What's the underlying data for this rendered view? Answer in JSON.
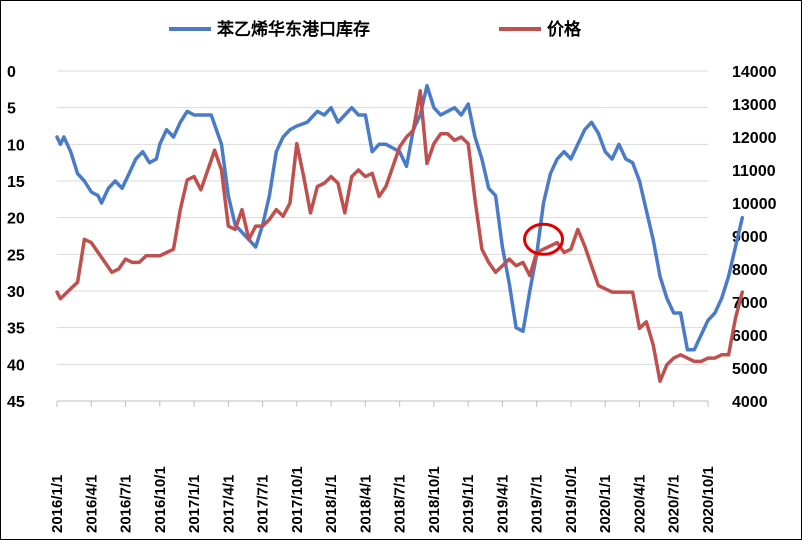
{
  "chart_data": {
    "type": "line",
    "title": "",
    "legend_position": "top",
    "grid": "horizontal",
    "left_axis": {
      "ylim": [
        0,
        45
      ],
      "inverted": true,
      "ticks": [
        "0",
        "5",
        "10",
        "15",
        "20",
        "25",
        "30",
        "35",
        "40",
        "45"
      ]
    },
    "right_axis": {
      "ylim": [
        4000,
        14000
      ],
      "ticks": [
        "14000",
        "13000",
        "12000",
        "11000",
        "10000",
        "9000",
        "8000",
        "7000",
        "6000",
        "5000",
        "4000"
      ]
    },
    "x_ticks": [
      "2016/1/1",
      "2016/4/1",
      "2016/7/1",
      "2016/10/1",
      "2017/1/1",
      "2017/4/1",
      "2017/7/1",
      "2017/10/1",
      "2018/1/1",
      "2018/4/1",
      "2018/7/1",
      "2018/10/1",
      "2019/1/1",
      "2019/4/1",
      "2019/7/1",
      "2019/10/1",
      "2020/1/1",
      "2020/4/1",
      "2020/7/1",
      "2020/10/1"
    ],
    "series": [
      {
        "name": "苯乙烯华东港口库存",
        "axis": "left",
        "color": "#4a7bc8",
        "points": [
          [
            0.0,
            9
          ],
          [
            0.1,
            10
          ],
          [
            0.2,
            9
          ],
          [
            0.4,
            11
          ],
          [
            0.6,
            14
          ],
          [
            0.8,
            15
          ],
          [
            1.0,
            16.5
          ],
          [
            1.2,
            17
          ],
          [
            1.3,
            18
          ],
          [
            1.5,
            16
          ],
          [
            1.7,
            15
          ],
          [
            1.9,
            16
          ],
          [
            2.1,
            14
          ],
          [
            2.3,
            12
          ],
          [
            2.5,
            11
          ],
          [
            2.7,
            12.5
          ],
          [
            2.9,
            12
          ],
          [
            3.0,
            10
          ],
          [
            3.2,
            8
          ],
          [
            3.4,
            9
          ],
          [
            3.6,
            7
          ],
          [
            3.8,
            5.5
          ],
          [
            4.0,
            6
          ],
          [
            4.2,
            6
          ],
          [
            4.5,
            6
          ],
          [
            4.8,
            10
          ],
          [
            5.0,
            17
          ],
          [
            5.2,
            21
          ],
          [
            5.4,
            22
          ],
          [
            5.6,
            23
          ],
          [
            5.8,
            24
          ],
          [
            6.0,
            21
          ],
          [
            6.2,
            17
          ],
          [
            6.4,
            11
          ],
          [
            6.6,
            9
          ],
          [
            6.8,
            8
          ],
          [
            7.0,
            7.5
          ],
          [
            7.3,
            7
          ],
          [
            7.6,
            5.5
          ],
          [
            7.8,
            6
          ],
          [
            8.0,
            5
          ],
          [
            8.2,
            7
          ],
          [
            8.4,
            6
          ],
          [
            8.6,
            5
          ],
          [
            8.8,
            6
          ],
          [
            9.0,
            6
          ],
          [
            9.2,
            11
          ],
          [
            9.4,
            10
          ],
          [
            9.6,
            10
          ],
          [
            9.8,
            10.5
          ],
          [
            10.0,
            11
          ],
          [
            10.2,
            13
          ],
          [
            10.4,
            8
          ],
          [
            10.6,
            6
          ],
          [
            10.8,
            2
          ],
          [
            11.0,
            5
          ],
          [
            11.2,
            6
          ],
          [
            11.4,
            5.5
          ],
          [
            11.6,
            5
          ],
          [
            11.8,
            6
          ],
          [
            12.0,
            4.5
          ],
          [
            12.2,
            9
          ],
          [
            12.4,
            12
          ],
          [
            12.6,
            16
          ],
          [
            12.8,
            17
          ],
          [
            13.0,
            24
          ],
          [
            13.2,
            29
          ],
          [
            13.4,
            35
          ],
          [
            13.6,
            35.5
          ],
          [
            13.8,
            30
          ],
          [
            14.0,
            25
          ],
          [
            14.2,
            18
          ],
          [
            14.4,
            14
          ],
          [
            14.6,
            12
          ],
          [
            14.8,
            11
          ],
          [
            15.0,
            12
          ],
          [
            15.2,
            10
          ],
          [
            15.4,
            8
          ],
          [
            15.6,
            7
          ],
          [
            15.8,
            8.5
          ],
          [
            16.0,
            11
          ],
          [
            16.2,
            12
          ],
          [
            16.4,
            10
          ],
          [
            16.6,
            12
          ],
          [
            16.8,
            12.5
          ],
          [
            17.0,
            15
          ],
          [
            17.2,
            19
          ],
          [
            17.4,
            23
          ],
          [
            17.6,
            28
          ],
          [
            17.8,
            31
          ],
          [
            18.0,
            33
          ],
          [
            18.2,
            33
          ],
          [
            18.4,
            38
          ],
          [
            18.6,
            38
          ],
          [
            18.8,
            36
          ],
          [
            19.0,
            34
          ],
          [
            19.2,
            33
          ],
          [
            19.4,
            31
          ],
          [
            19.6,
            28
          ],
          [
            19.8,
            24
          ],
          [
            20.0,
            20
          ]
        ]
      },
      {
        "name": "价格",
        "axis": "right",
        "color": "#c0504d",
        "points": [
          [
            0.0,
            7300
          ],
          [
            0.1,
            7100
          ],
          [
            0.2,
            7200
          ],
          [
            0.4,
            7400
          ],
          [
            0.6,
            7600
          ],
          [
            0.8,
            8900
          ],
          [
            1.0,
            8800
          ],
          [
            1.2,
            8500
          ],
          [
            1.4,
            8200
          ],
          [
            1.6,
            7900
          ],
          [
            1.8,
            8000
          ],
          [
            2.0,
            8300
          ],
          [
            2.2,
            8200
          ],
          [
            2.4,
            8200
          ],
          [
            2.6,
            8400
          ],
          [
            2.8,
            8400
          ],
          [
            3.0,
            8400
          ],
          [
            3.2,
            8500
          ],
          [
            3.4,
            8600
          ],
          [
            3.6,
            9800
          ],
          [
            3.8,
            10700
          ],
          [
            4.0,
            10800
          ],
          [
            4.2,
            10400
          ],
          [
            4.4,
            11000
          ],
          [
            4.6,
            11600
          ],
          [
            4.8,
            11000
          ],
          [
            5.0,
            9300
          ],
          [
            5.2,
            9200
          ],
          [
            5.4,
            9800
          ],
          [
            5.6,
            8900
          ],
          [
            5.8,
            9300
          ],
          [
            6.0,
            9300
          ],
          [
            6.2,
            9500
          ],
          [
            6.4,
            9800
          ],
          [
            6.6,
            9600
          ],
          [
            6.8,
            10000
          ],
          [
            7.0,
            11800
          ],
          [
            7.2,
            10800
          ],
          [
            7.4,
            9700
          ],
          [
            7.6,
            10500
          ],
          [
            7.8,
            10600
          ],
          [
            8.0,
            10800
          ],
          [
            8.2,
            10600
          ],
          [
            8.4,
            9700
          ],
          [
            8.6,
            10800
          ],
          [
            8.8,
            11000
          ],
          [
            9.0,
            10800
          ],
          [
            9.2,
            10900
          ],
          [
            9.4,
            10200
          ],
          [
            9.6,
            10500
          ],
          [
            9.8,
            11100
          ],
          [
            10.0,
            11700
          ],
          [
            10.2,
            12000
          ],
          [
            10.4,
            12200
          ],
          [
            10.6,
            13400
          ],
          [
            10.8,
            11200
          ],
          [
            11.0,
            11800
          ],
          [
            11.2,
            12100
          ],
          [
            11.4,
            12100
          ],
          [
            11.6,
            11900
          ],
          [
            11.8,
            12000
          ],
          [
            12.0,
            11800
          ],
          [
            12.2,
            10100
          ],
          [
            12.4,
            8600
          ],
          [
            12.6,
            8200
          ],
          [
            12.8,
            7900
          ],
          [
            13.0,
            8100
          ],
          [
            13.2,
            8300
          ],
          [
            13.4,
            8100
          ],
          [
            13.6,
            8200
          ],
          [
            13.8,
            7800
          ],
          [
            14.0,
            8500
          ],
          [
            14.2,
            8600
          ],
          [
            14.4,
            8700
          ],
          [
            14.6,
            8800
          ],
          [
            14.8,
            8500
          ],
          [
            15.0,
            8600
          ],
          [
            15.2,
            9200
          ],
          [
            15.4,
            8700
          ],
          [
            15.6,
            8100
          ],
          [
            15.8,
            7500
          ],
          [
            16.0,
            7400
          ],
          [
            16.2,
            7300
          ],
          [
            16.4,
            7300
          ],
          [
            16.6,
            7300
          ],
          [
            16.8,
            7300
          ],
          [
            17.0,
            6200
          ],
          [
            17.2,
            6400
          ],
          [
            17.4,
            5700
          ],
          [
            17.6,
            4600
          ],
          [
            17.8,
            5100
          ],
          [
            18.0,
            5300
          ],
          [
            18.2,
            5400
          ],
          [
            18.4,
            5300
          ],
          [
            18.6,
            5200
          ],
          [
            18.8,
            5200
          ],
          [
            19.0,
            5300
          ],
          [
            19.2,
            5300
          ],
          [
            19.4,
            5400
          ],
          [
            19.6,
            5400
          ],
          [
            19.8,
            6500
          ],
          [
            20.0,
            7300
          ]
        ]
      }
    ],
    "annotations": [
      {
        "type": "circle",
        "color": "#e00000",
        "at_x": 14.2,
        "at_right_value": 8900
      }
    ]
  }
}
